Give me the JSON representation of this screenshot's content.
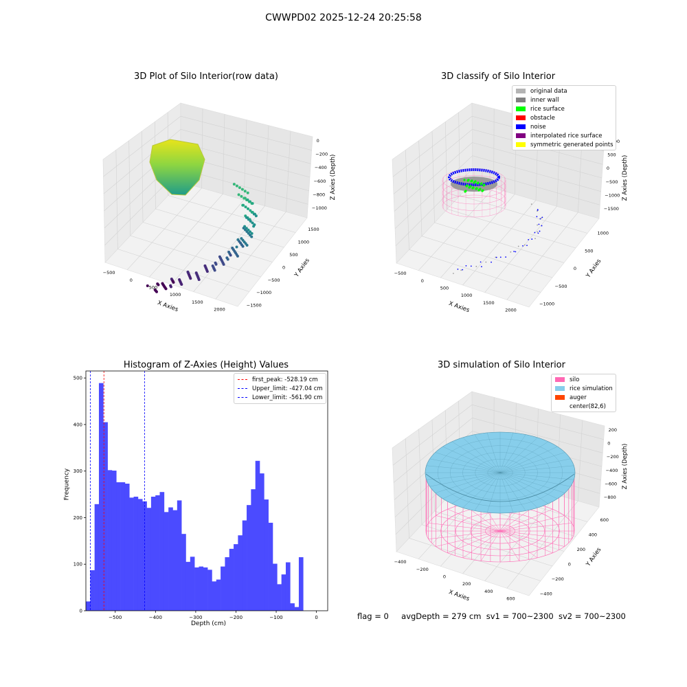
{
  "suptitle": "CWWPD02 2025-12-24 20:25:58",
  "status": {
    "flag": "flag = 0",
    "avg": "avgDepth = 279 cm",
    "sv1": "sv1 = 700~2300",
    "sv2": "sv2 = 700~2300"
  },
  "panels": {
    "raw": {
      "title": "3D Plot of Silo Interior(row data)",
      "xlabel": "X Axies",
      "ylabel": "Y Axies",
      "zlabel": "Z Axies (Depth)",
      "xticks": [
        "−500",
        "0",
        "500",
        "1000",
        "1500",
        "2000"
      ],
      "yticks": [
        "−1500",
        "−1000",
        "−500",
        "0",
        "500",
        "1000",
        "1500"
      ],
      "zticks": [
        "0",
        "−200",
        "−400",
        "−600",
        "−800",
        "−1000"
      ]
    },
    "classify": {
      "title": "3D classify of Silo Interior",
      "xlabel": "X Axies",
      "ylabel": "Y Axies",
      "zlabel": "Z Axies (Depth)",
      "xticks": [
        "−500",
        "0",
        "500",
        "1000",
        "1500",
        "2000"
      ],
      "yticks": [
        "−1000",
        "−500",
        "0",
        "500",
        "1000"
      ],
      "zticks": [
        "1000",
        "500",
        "0",
        "−500",
        "−1000",
        "−1500"
      ],
      "legend": [
        {
          "label": "original data",
          "color": "#b4b4b4"
        },
        {
          "label": "inner wall",
          "color": "#808080"
        },
        {
          "label": "rice surface",
          "color": "#00ff00"
        },
        {
          "label": "obstacle",
          "color": "#ff0000"
        },
        {
          "label": "noise",
          "color": "#0000ff"
        },
        {
          "label": "interpolated rice surface",
          "color": "#800080"
        },
        {
          "label": "symmetric generated points",
          "color": "#ffff00"
        }
      ]
    },
    "sim": {
      "title": "3D simulation of Silo Interior",
      "xlabel": "X Axies",
      "ylabel": "Y Axies",
      "zlabel": "Z Axies (Depth)",
      "xticks": [
        "−400",
        "−200",
        "0",
        "200",
        "400",
        "600"
      ],
      "yticks": [
        "−400",
        "−200",
        "0",
        "200",
        "400",
        "600"
      ],
      "zticks": [
        "200",
        "0",
        "−200",
        "−400",
        "−600",
        "−800"
      ],
      "legend": [
        {
          "label": "silo",
          "color": "#ff69b4"
        },
        {
          "label": "rice simulation",
          "color": "#87ceeb"
        },
        {
          "label": "auger",
          "color": "#ff4500"
        },
        {
          "label": "center(82,6)",
          "color": ""
        }
      ]
    }
  },
  "chart_data": {
    "type": "bar",
    "title": "Histogram of Z-Axies (Height) Values",
    "xlabel": "Depth (cm)",
    "ylabel": "Frequency",
    "bar_color": "#4b4bff",
    "bin_start": -573,
    "bin_width": 10.8,
    "values": [
      20,
      87,
      229,
      489,
      405,
      302,
      301,
      276,
      276,
      273,
      243,
      245,
      240,
      235,
      221,
      245,
      248,
      255,
      212,
      222,
      216,
      237,
      165,
      105,
      116,
      93,
      95,
      93,
      88,
      63,
      67,
      95,
      115,
      133,
      143,
      162,
      194,
      227,
      261,
      322,
      295,
      239,
      189,
      101,
      57,
      78,
      104,
      16,
      8,
      115
    ],
    "xlim": [
      -573,
      28
    ],
    "ylim": [
      0,
      515
    ],
    "xticks": [
      -500,
      -400,
      -300,
      -200,
      -100,
      0
    ],
    "yticks": [
      0,
      100,
      200,
      300,
      400,
      500
    ],
    "lines": [
      {
        "label": "first_peak: -528.19 cm",
        "x": -528.19,
        "color": "#ff0000"
      },
      {
        "label": "Upper_limit: -427.04 cm",
        "x": -427.04,
        "color": "#0000ff"
      },
      {
        "label": "Lower_limit: -561.90 cm",
        "x": -561.9,
        "color": "#0000ff"
      }
    ]
  }
}
